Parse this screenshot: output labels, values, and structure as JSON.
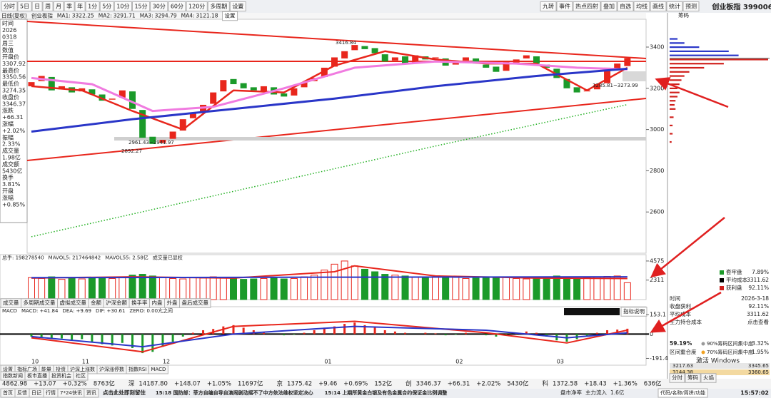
{
  "toolbar": {
    "left": [
      "分时",
      "5日",
      "日",
      "周",
      "月",
      "季",
      "年",
      "1分",
      "5分",
      "10分",
      "15分",
      "30分",
      "60分",
      "120分",
      "多周期",
      "设置"
    ],
    "right": [
      "九转",
      "事件",
      "热点四射",
      "叠加",
      "自选",
      "均线",
      "画线",
      "统计",
      "预测"
    ]
  },
  "price_chart": {
    "mode": "日线(复权)",
    "name": "创业板指",
    "settings": "设置",
    "ma": [
      {
        "name": "MA1:",
        "value": 3322.25,
        "color": "#e8261c",
        "width": 2.5,
        "x": [
          0,
          5,
          10,
          15,
          20,
          25,
          30,
          35,
          40,
          45,
          50,
          55,
          59
        ],
        "values": [
          3210,
          3190,
          3090,
          3000,
          3190,
          3180,
          3310,
          3380,
          3340,
          3320,
          3320,
          3190,
          3300
        ]
      },
      {
        "name": "MA2:",
        "value": 3291.71,
        "color": "#f07be0",
        "width": 3,
        "x": [
          0,
          6,
          12,
          18,
          25,
          32,
          40,
          48,
          54,
          59
        ],
        "values": [
          3250,
          3220,
          3090,
          3110,
          3200,
          3300,
          3330,
          3320,
          3300,
          3292
        ]
      },
      {
        "name": "MA3:",
        "value": 3294.79,
        "color": "#2a36c8",
        "width": 3,
        "x": [
          0,
          10,
          20,
          30,
          40,
          50,
          59
        ],
        "values": [
          2990,
          3050,
          3100,
          3150,
          3210,
          3260,
          3295
        ]
      },
      {
        "name": "MA4:",
        "value": 3121.18,
        "color": "#22b022",
        "width": 1.5,
        "dashed": true,
        "x": [
          0,
          20,
          40,
          59
        ],
        "values": [
          2480,
          2700,
          2920,
          3121
        ]
      }
    ],
    "info": {
      "head": [
        "时间",
        "2026",
        "0318",
        "周三",
        "数值"
      ],
      "rows": [
        [
          "开盘价",
          "3307.92"
        ],
        [
          "最高价",
          "3350.56"
        ],
        [
          "最低价",
          "3274.35"
        ],
        [
          "收盘价",
          "3346.37"
        ],
        [
          "涨跌",
          "+66.31"
        ],
        [
          "涨幅",
          "+2.02%"
        ],
        [
          "振幅",
          "2.33%"
        ],
        [
          "成交量",
          "1.98亿"
        ],
        [
          "成交额",
          "5430亿"
        ],
        [
          "换手",
          "3.81%"
        ],
        [
          "开盘",
          "涨幅",
          "+0.85%"
        ]
      ]
    },
    "ylim": [
      2400,
      3535
    ],
    "yticks": [
      3400,
      3200,
      3000,
      2800,
      2600
    ],
    "categories": [
      "10",
      null,
      null,
      null,
      null,
      "11",
      null,
      null,
      null,
      null,
      null,
      null,
      null,
      "12",
      null,
      null,
      null,
      null,
      null,
      null,
      null,
      null,
      null,
      null,
      null,
      null,
      null,
      null,
      null,
      "01",
      null,
      null,
      null,
      null,
      null,
      null,
      null,
      null,
      null,
      null,
      null,
      null,
      "02",
      null,
      null,
      null,
      null,
      null,
      null,
      null,
      null,
      null,
      "03",
      null,
      null,
      null,
      null,
      null,
      null,
      null
    ],
    "open": [
      3210,
      3235,
      3255,
      3195,
      3205,
      3185,
      3195,
      3170,
      3145,
      3155,
      3185,
      3095,
      2965,
      2935,
      2955,
      2995,
      3055,
      3085,
      3125,
      3185,
      3245,
      3225,
      3205,
      3185,
      3205,
      3175,
      3165,
      3205,
      3235,
      3255,
      3305,
      3345,
      3385,
      3405,
      3395,
      3365,
      3335,
      3355,
      3325,
      3355,
      3345,
      3345,
      3315,
      3335,
      3345,
      3315,
      3305,
      3285,
      3325,
      3345,
      3355,
      3315,
      3295,
      3245,
      3205,
      3185,
      3195,
      3225,
      3290,
      3307.92
    ],
    "close": [
      3230,
      3260,
      3190,
      3210,
      3180,
      3200,
      3170,
      3140,
      3150,
      3190,
      3100,
      2960,
      2930,
      2950,
      2990,
      3050,
      3080,
      3120,
      3180,
      3240,
      3220,
      3200,
      3190,
      3210,
      3170,
      3160,
      3200,
      3230,
      3250,
      3300,
      3350,
      3380,
      3410,
      3390,
      3370,
      3330,
      3350,
      3320,
      3360,
      3340,
      3350,
      3310,
      3330,
      3350,
      3320,
      3300,
      3280,
      3330,
      3340,
      3360,
      3320,
      3300,
      3250,
      3200,
      3180,
      3190,
      3220,
      3300,
      3320,
      3346.37
    ],
    "annotations": [
      "3416.84",
      "2892.27",
      "2961.43~2941.97",
      "3285.81~3273.99"
    ],
    "up_color": "#e8261c",
    "down_color": "#1b9a2a"
  },
  "volume": {
    "labels": [
      {
        "text": "总手: 198278540",
        "color": "#b01818"
      },
      {
        "text": "MAVOL5: 217464842",
        "color": "#e8261c"
      },
      {
        "text": "MAVOL55: 2.58亿",
        "color": "#2a36c8"
      },
      {
        "text": "成交量已显权",
        "color": "#2a36c8"
      }
    ],
    "ylim": [
      0,
      5330
    ],
    "yticks": [
      4575,
      2311
    ],
    "values": [
      2600,
      2500,
      2700,
      2400,
      2500,
      2450,
      2550,
      2600,
      2500,
      2700,
      2900,
      3000,
      2800,
      2600,
      2500,
      2450,
      2600,
      2550,
      2700,
      2650,
      2500,
      2400,
      2450,
      2500,
      2550,
      2450,
      2500,
      2700,
      2900,
      3500,
      4200,
      4575,
      4000,
      3600,
      3300,
      3000,
      2900,
      2800,
      2700,
      2650,
      2700,
      2600,
      2650,
      2500,
      2550,
      2600,
      2700,
      2650,
      2500,
      2450,
      2500,
      2600,
      2800,
      2700,
      2500,
      2600,
      2700,
      2750,
      2800,
      2000
    ],
    "lines": [
      {
        "color": "#e8261c",
        "x": [
          0,
          10,
          20,
          30,
          32,
          40,
          50,
          59
        ],
        "values": [
          2550,
          2700,
          2550,
          3300,
          4000,
          2800,
          2550,
          2500
        ]
      },
      {
        "color": "#2a36c8",
        "x": [
          0,
          30,
          59
        ],
        "values": [
          2600,
          2650,
          2700
        ]
      }
    ],
    "tabs": [
      "成交量",
      "多周期成交量",
      "虚拟成交量",
      "金额",
      "沪深金额",
      "换手率",
      "内盘",
      "外盘",
      "盘后成交量"
    ]
  },
  "macd": {
    "labels": [
      {
        "text": "MACD",
        "color": "#888888"
      },
      {
        "text": "MACD: +41.84",
        "color": "#b01818"
      },
      {
        "text": "DEA: +9.69",
        "color": "#2a36c8"
      },
      {
        "text": "DIF: +30.61",
        "color": "#b01818"
      },
      {
        "text": "ZERO: 0.00亢之间",
        "color": "#333333"
      }
    ],
    "ylim": [
      -200,
      170
    ],
    "yticks": [
      153.1,
      0,
      -191.4
    ],
    "values": [
      -20,
      -30,
      -40,
      -35,
      -50,
      -40,
      -60,
      -80,
      -90,
      -70,
      -110,
      -150,
      -140,
      -100,
      -60,
      -20,
      10,
      30,
      40,
      60,
      70,
      50,
      30,
      10,
      0,
      -10,
      -5,
      10,
      30,
      50,
      60,
      80,
      90,
      70,
      50,
      30,
      20,
      10,
      0,
      10,
      5,
      -10,
      -5,
      10,
      0,
      -10,
      -20,
      -10,
      10,
      20,
      10,
      -20,
      -50,
      -60,
      -40,
      -20,
      10,
      30,
      35,
      41.84
    ],
    "lines": [
      {
        "color": "#e8261c",
        "x": [
          0,
          11,
          20,
          32,
          45,
          53,
          59
        ],
        "values": [
          -30,
          -140,
          60,
          100,
          10,
          -70,
          30.61
        ]
      },
      {
        "color": "#2a36c8",
        "x": [
          0,
          11,
          20,
          32,
          45,
          53,
          59
        ],
        "values": [
          -20,
          -100,
          0,
          60,
          30,
          -30,
          9.69
        ]
      }
    ],
    "button": "指标说明"
  },
  "indicator_tabs": [
    "设置",
    "指标广场",
    "能量",
    "投资",
    "沪深上涨数",
    "沪深涨停数",
    "指数RSI",
    "MACD"
  ],
  "links": [
    "指数新闻",
    "板市直播",
    "投资机会",
    "社区"
  ],
  "ticker": [
    {
      "values": [
        "4862.98",
        "+13.07",
        "+0.32%",
        "8763亿"
      ]
    },
    {
      "market": "深",
      "values": [
        "14187.80",
        "+148.07",
        "+1.05%",
        "11697亿"
      ]
    },
    {
      "market": "京",
      "values": [
        "1375.42",
        "+9.46",
        "+0.69%",
        "152亿"
      ]
    },
    {
      "market": "创",
      "values": [
        "3346.37",
        "+66.31",
        "+2.02%",
        "5430亿"
      ]
    },
    {
      "market": "科",
      "values": [
        "1372.58",
        "+18.43",
        "+1.36%",
        "636亿"
      ]
    }
  ],
  "statusbar": {
    "nav": [
      "首页",
      "反馈",
      "日记",
      "行情",
      "7*24快讯",
      "资讯"
    ],
    "promo": "点击此处即刻留住",
    "news": [
      "15:18 国防部：菲方自编自导自演闹剧动摇不了中方依法维权坚定决心",
      "15:14 上期所黄金白银及有色金属合约保证金比例调整"
    ],
    "flow": [
      "盘市净率",
      "主力流入",
      "1.6亿"
    ],
    "search": "代码/名称/简拼/功能",
    "time": "15:57:02"
  },
  "chips": {
    "title": "创业板指 399006",
    "label": "筹码",
    "xlim": [
      0,
      100
    ],
    "prices": [
      3440,
      3420,
      3400,
      3380,
      3360,
      3340,
      3320,
      3300,
      3280,
      3260,
      3240,
      3220,
      3200,
      3180,
      3160,
      3140,
      3120,
      3100,
      3060,
      3020,
      2980,
      2940
    ],
    "values": [
      8,
      15,
      30,
      60,
      70,
      100,
      55,
      35,
      20,
      15,
      12,
      10,
      8,
      10,
      8,
      6,
      5,
      6,
      4,
      3,
      3,
      2
    ],
    "legend": [
      {
        "label": "套牢盘",
        "value": "7.89%",
        "color": "#1b9a2a"
      },
      {
        "label": "平均成本",
        "value": "3311.62",
        "color": "#000000"
      },
      {
        "label": "获利盘",
        "value": "92.11%",
        "color": "#d0201c"
      }
    ],
    "table": [
      [
        "时间",
        "2026-3-18"
      ],
      [
        "收盘获利",
        "92.11%"
      ],
      [
        "平均成本",
        "3311.62"
      ],
      [
        "主力持仓成本",
        "点击查看"
      ]
    ],
    "concentration": [
      [
        "59.19%",
        "90%筹码区间:",
        "集中度",
        "3.32%"
      ],
      [
        "区间重合度",
        "70%筹码区间:",
        "集中度",
        "1.95%"
      ]
    ],
    "ranges": [
      [
        "3217.63",
        "3345.65"
      ],
      [
        "3144.38",
        "3360.65"
      ]
    ],
    "tabs": [
      "分时",
      "筹码",
      "火焰"
    ],
    "watermark": "激活 Windows"
  }
}
